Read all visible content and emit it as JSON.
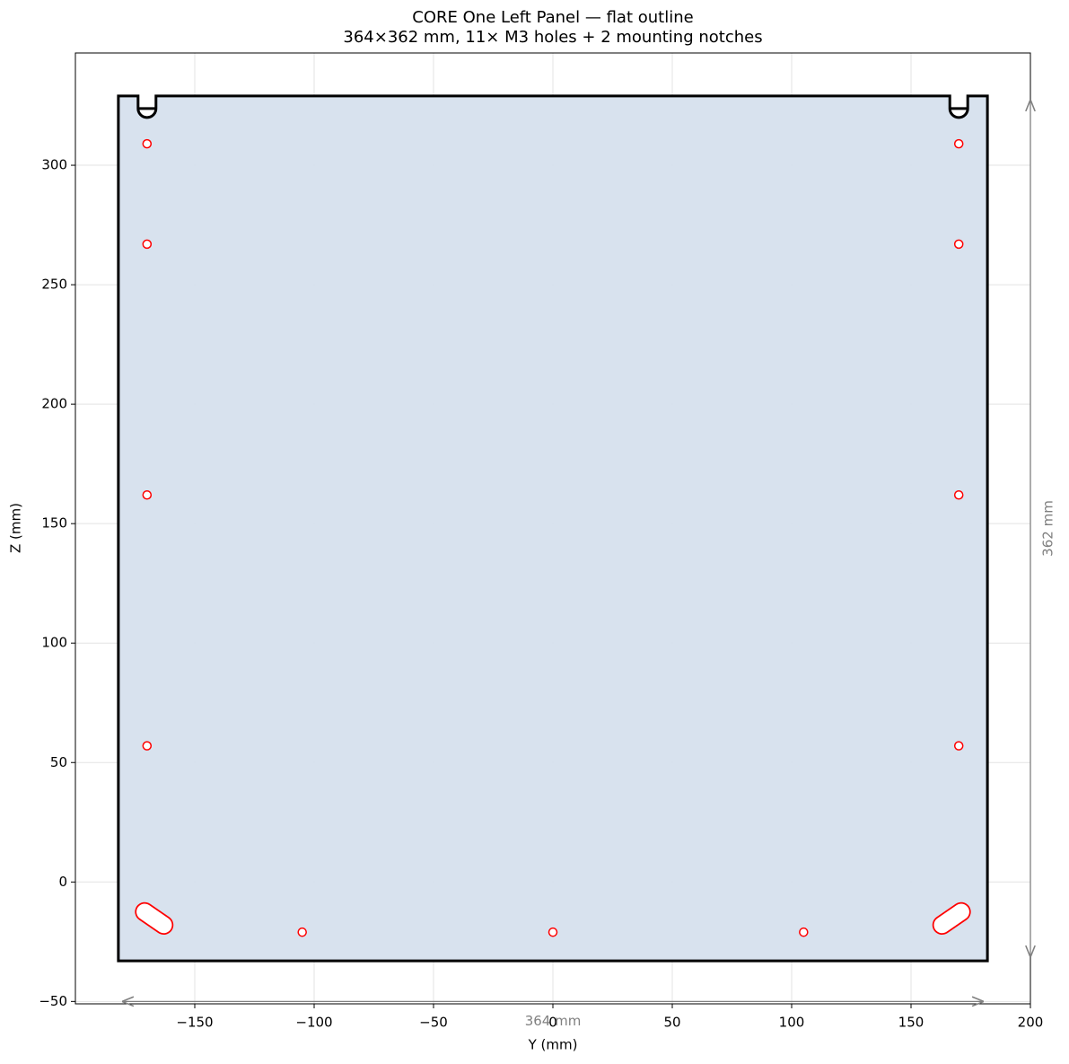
{
  "chart_data": {
    "type": "outline",
    "title": "CORE One Left Panel — flat outline",
    "subtitle": "364×362 mm, 11× M3 holes + 2 mounting notches",
    "xlabel": "Y (mm)",
    "ylabel": "Z (mm)",
    "xlim": [
      -200,
      200
    ],
    "ylim": [
      -51,
      347
    ],
    "xticks": [
      {
        "value": -150,
        "label": "−150"
      },
      {
        "value": -100,
        "label": "−100"
      },
      {
        "value": -50,
        "label": "−50"
      },
      0,
      50,
      100,
      150,
      200
    ],
    "yticks": [
      {
        "value": -50,
        "label": "−50"
      },
      0,
      50,
      100,
      150,
      200,
      250,
      300
    ],
    "grid": true,
    "panel": {
      "y": [
        -182,
        182
      ],
      "z": [
        -33,
        329
      ],
      "fill": "#d6e0ed",
      "edge": "#000000"
    },
    "notches": {
      "y": [
        -170,
        170
      ],
      "width": 7.5,
      "depth": 9
    },
    "holes": {
      "y": [
        -170,
        -170,
        -170,
        -170,
        170,
        170,
        170,
        170,
        -105,
        0,
        105
      ],
      "z": [
        309,
        267,
        162,
        57,
        309,
        267,
        162,
        57,
        -21,
        -21,
        -21
      ],
      "diameter": 3.4,
      "color": "#ff0000"
    },
    "slots": [
      {
        "y": [
          -171,
          -163
        ],
        "z": [
          -12.5,
          -18
        ],
        "width": 7
      },
      {
        "y": [
          171,
          163
        ],
        "z": [
          -12.5,
          -18
        ],
        "width": 7
      }
    ],
    "dimensions": [
      {
        "label": "364 mm",
        "y": [
          -180,
          180
        ],
        "z": [
          -50,
          -50
        ]
      },
      {
        "label": "362 mm",
        "y": [
          200,
          200
        ],
        "z": [
          -31,
          327
        ]
      }
    ]
  }
}
